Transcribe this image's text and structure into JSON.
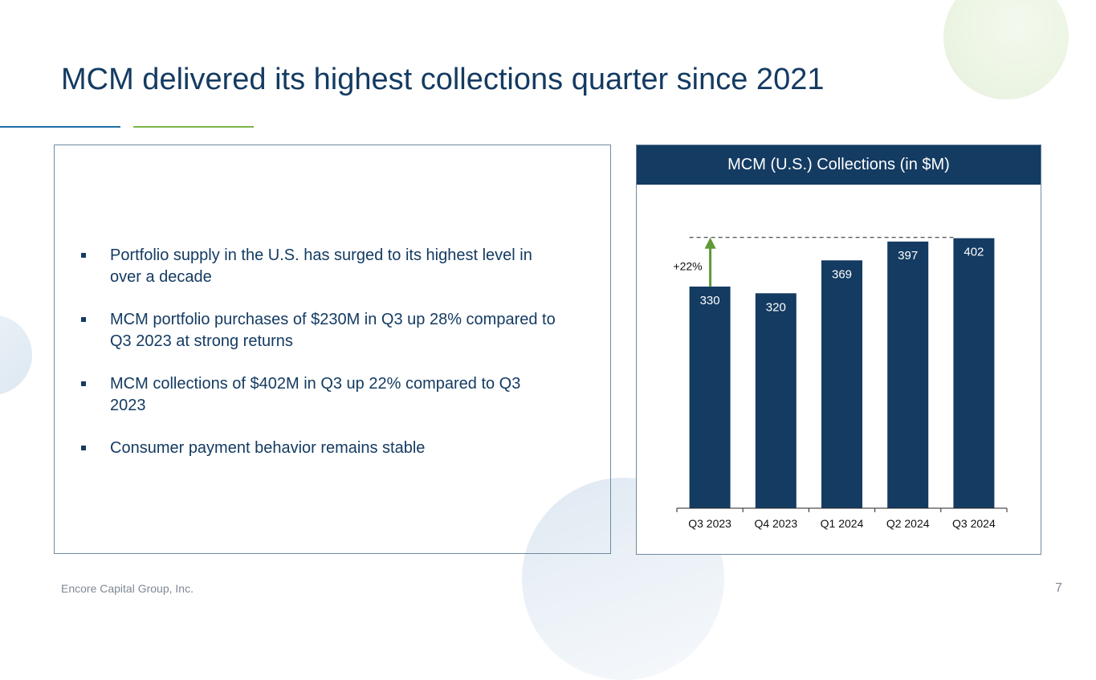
{
  "slide": {
    "title": "MCM delivered its highest collections quarter since 2021",
    "footer_company": "Encore Capital Group, Inc.",
    "page_number": "7"
  },
  "bullets": [
    "Portfolio supply in the U.S. has surged to its highest level in over a decade",
    "MCM portfolio purchases of $230M in Q3 up 28% compared to Q3 2023 at strong returns",
    "MCM collections of $402M in Q3 up 22% compared to Q3 2023",
    "Consumer payment behavior remains stable"
  ],
  "colors": {
    "navy": "#143b62",
    "accent_blue": "#1f6fa6",
    "accent_green": "#7bb548",
    "arrow_green": "#5e9a35"
  },
  "chart_data": {
    "type": "bar",
    "title": "MCM (U.S.) Collections (in $M)",
    "categories": [
      "Q3 2023",
      "Q4 2023",
      "Q1 2024",
      "Q2 2024",
      "Q3 2024"
    ],
    "values": [
      330,
      320,
      369,
      397,
      402
    ],
    "ylim": [
      0,
      410
    ],
    "xlabel": "",
    "ylabel": "",
    "grid": false,
    "annotations": [
      {
        "type": "growth-arrow",
        "label": "+22%",
        "from": "Q3 2023",
        "to": "Q3 2024"
      }
    ]
  }
}
